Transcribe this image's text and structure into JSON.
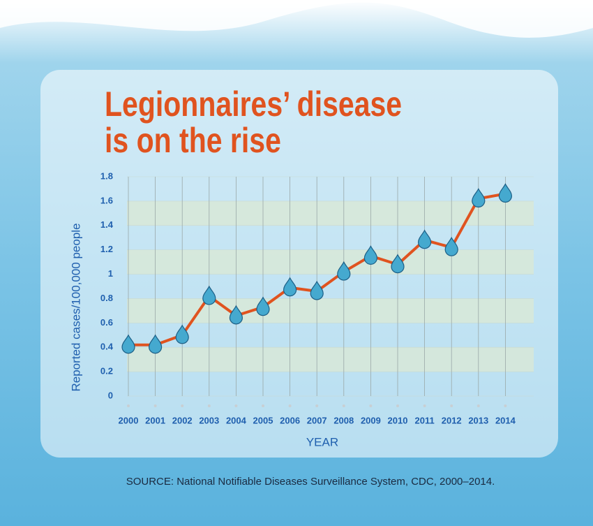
{
  "chart_data": {
    "type": "line",
    "title": [
      "Legionnaires’ disease",
      "is on the rise"
    ],
    "y_label": "Reported cases/100,000 people",
    "x_label": "YEAR",
    "source": "SOURCE: National Notifiable Diseases Surveillance System, CDC, 2000–2014.",
    "categories": [
      "2000",
      "2001",
      "2002",
      "2003",
      "2004",
      "2005",
      "2006",
      "2007",
      "2008",
      "2009",
      "2010",
      "2011",
      "2012",
      "2013",
      "2014"
    ],
    "values": [
      0.42,
      0.42,
      0.5,
      0.82,
      0.66,
      0.73,
      0.89,
      0.86,
      1.02,
      1.15,
      1.08,
      1.28,
      1.22,
      1.62,
      1.66
    ],
    "color": "#e0531f",
    "marker_color": "#45a9cf",
    "ylim": [
      0,
      1.8
    ],
    "yticks": [
      0,
      0.2,
      0.4,
      0.6,
      0.8,
      1,
      1.2,
      1.4,
      1.6,
      1.8
    ],
    "grid": true
  }
}
